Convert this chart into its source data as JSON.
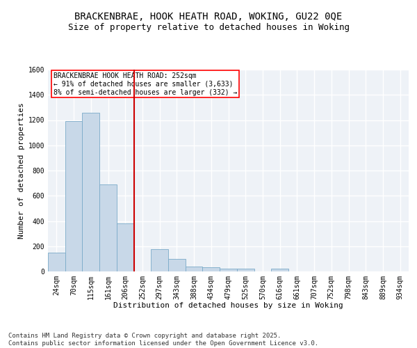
{
  "title_line1": "BRACKENBRAE, HOOK HEATH ROAD, WOKING, GU22 0QE",
  "title_line2": "Size of property relative to detached houses in Woking",
  "xlabel": "Distribution of detached houses by size in Woking",
  "ylabel": "Number of detached properties",
  "bar_color": "#c8d8e8",
  "bar_edge_color": "#7aaac8",
  "vline_color": "#cc0000",
  "categories": [
    "24sqm",
    "70sqm",
    "115sqm",
    "161sqm",
    "206sqm",
    "252sqm",
    "297sqm",
    "343sqm",
    "388sqm",
    "434sqm",
    "479sqm",
    "525sqm",
    "570sqm",
    "616sqm",
    "661sqm",
    "707sqm",
    "752sqm",
    "798sqm",
    "843sqm",
    "889sqm",
    "934sqm"
  ],
  "values": [
    150,
    1190,
    1260,
    690,
    380,
    0,
    175,
    100,
    40,
    35,
    20,
    20,
    0,
    20,
    0,
    0,
    0,
    0,
    0,
    0,
    0
  ],
  "vline_x": 4.5,
  "ylim": [
    0,
    1600
  ],
  "yticks": [
    0,
    200,
    400,
    600,
    800,
    1000,
    1200,
    1400,
    1600
  ],
  "annotation_text": "BRACKENBRAE HOOK HEATH ROAD: 252sqm\n← 91% of detached houses are smaller (3,633)\n8% of semi-detached houses are larger (332) →",
  "background_color": "#eef2f7",
  "grid_color": "#ffffff",
  "footer_text": "Contains HM Land Registry data © Crown copyright and database right 2025.\nContains public sector information licensed under the Open Government Licence v3.0.",
  "title_fontsize": 10,
  "subtitle_fontsize": 9,
  "axis_label_fontsize": 8,
  "tick_fontsize": 7,
  "annotation_fontsize": 7,
  "footer_fontsize": 6.5
}
